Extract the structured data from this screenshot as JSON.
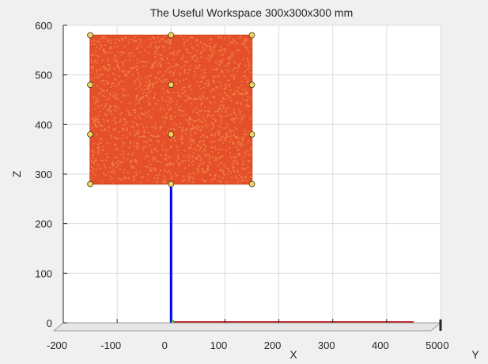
{
  "chart_data": {
    "type": "scatter",
    "title": "The Useful Workspace 300x300x300 mm",
    "xlabel": "X",
    "ylabel": "Z",
    "third_axis_label": "Y",
    "xlim": [
      -200,
      500
    ],
    "ylim": [
      0,
      600
    ],
    "xticks": [
      "-200",
      "-100",
      "0",
      "100",
      "200",
      "300",
      "400",
      "500"
    ],
    "yticks": [
      "0",
      "100",
      "200",
      "300",
      "400",
      "500",
      "600"
    ],
    "extra_tick": "0",
    "grid": true,
    "workspace": {
      "x_range": [
        -150,
        150
      ],
      "z_range": [
        280,
        580
      ],
      "color": "#e5502a",
      "dot_color": "#f08a4a"
    },
    "corner_points": [
      [
        -150,
        580
      ],
      [
        0,
        580
      ],
      [
        150,
        580
      ],
      [
        -150,
        480
      ],
      [
        0,
        480
      ],
      [
        150,
        480
      ],
      [
        -150,
        380
      ],
      [
        0,
        380
      ],
      [
        150,
        380
      ],
      [
        -150,
        280
      ],
      [
        0,
        280
      ],
      [
        150,
        280
      ]
    ],
    "corner_point_color": "#f5d35a",
    "axes_lines": [
      {
        "name": "Z",
        "from": [
          0,
          0
        ],
        "to": [
          0,
          280
        ],
        "color": "#0000ff"
      },
      {
        "name": "X",
        "from": [
          0,
          0
        ],
        "to": [
          450,
          0
        ],
        "color": "#c00000"
      }
    ]
  }
}
